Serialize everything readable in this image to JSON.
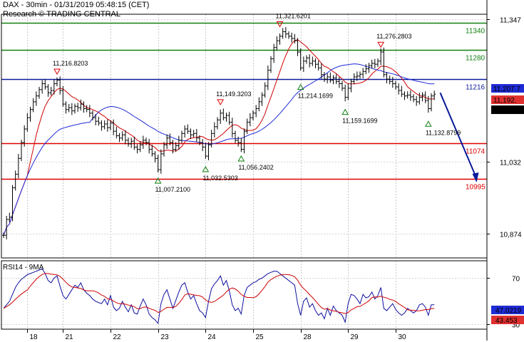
{
  "header": {
    "title": "DAX - 30min - 01/31/2019 05:48:15 (CET)",
    "source": "Research © TRADING CENTRAL"
  },
  "colors": {
    "price": "#000000",
    "ma_fast": "#d00000",
    "ma_slow": "#1f2bd6",
    "support": "#e00000",
    "resistance": "#108010",
    "pivot": "#0a1a9a",
    "arrow": "#0a1a9a",
    "rsi": "#1010a0",
    "rsi_ma": "#d00000",
    "badge_blue": "#1f2bd6",
    "badge_red": "#e03030",
    "badge_black": "#000000"
  },
  "chart_data": [
    {
      "type": "line",
      "title": "DAX - 30min - 01/31/2019 05:48:15 (CET)",
      "ylim": [
        10820,
        11390
      ],
      "x_labels": [
        "18",
        "21",
        "22",
        "23",
        "24",
        "25",
        "28",
        "29",
        "30"
      ],
      "y_ticks": [
        "11,347",
        "11,032",
        "10,874"
      ],
      "y_tick_values": [
        11347,
        11032,
        10874
      ],
      "levels": [
        {
          "value": 11340,
          "label": "11340",
          "role": "resistance"
        },
        {
          "value": 11280,
          "label": "11280",
          "role": "resistance"
        },
        {
          "value": 11216,
          "label": "11216",
          "role": "pivot"
        },
        {
          "value": 11074,
          "label": "11074",
          "role": "support"
        },
        {
          "value": 10995,
          "label": "10995",
          "role": "support"
        }
      ],
      "annotations": [
        {
          "label": "11,216.8203",
          "idx": 18,
          "value": 11216.8,
          "type": "high"
        },
        {
          "label": "11,007.2100",
          "idx": 52,
          "value": 11007.2,
          "type": "low"
        },
        {
          "label": "11,032.5303",
          "idx": 68,
          "value": 11032.5,
          "type": "low"
        },
        {
          "label": "11,149.3203",
          "idx": 73,
          "value": 11149.3,
          "type": "high"
        },
        {
          "label": "11,056.2402",
          "idx": 80,
          "value": 11056.2,
          "type": "low"
        },
        {
          "label": "11,321.6201",
          "idx": 93,
          "value": 11321.6,
          "type": "high"
        },
        {
          "label": "11,214.1699",
          "idx": 100,
          "value": 11214.2,
          "type": "low"
        },
        {
          "label": "11,159.1699",
          "idx": 115,
          "value": 11159.2,
          "type": "low"
        },
        {
          "label": "11,276.2803",
          "idx": 127,
          "value": 11276.3,
          "type": "high"
        },
        {
          "label": "11,132.8799",
          "idx": 143,
          "value": 11132.9,
          "type": "low"
        }
      ],
      "badges": [
        {
          "label": "11,207.7",
          "value": 11207.7,
          "color": "badge_blue"
        },
        {
          "label": "11,192.",
          "value": 11192,
          "color": "badge_red"
        },
        {
          "label": "11,181.7",
          "value": 11181.7,
          "color": "badge_black"
        }
      ],
      "forecast": {
        "from_value": 11185,
        "to_value": 10990
      },
      "close": [
        10870,
        10905,
        10910,
        10975,
        11005,
        11040,
        11075,
        11105,
        11130,
        11148,
        11165,
        11178,
        11192,
        11205,
        11198,
        11185,
        11190,
        11205,
        11213,
        11190,
        11160,
        11148,
        11152,
        11145,
        11155,
        11152,
        11160,
        11150,
        11148,
        11140,
        11130,
        11122,
        11118,
        11110,
        11116,
        11108,
        11118,
        11100,
        11090,
        11085,
        11092,
        11080,
        11072,
        11078,
        11065,
        11060,
        11070,
        11080,
        11075,
        11060,
        11050,
        11040,
        11015,
        11050,
        11070,
        11085,
        11075,
        11060,
        11068,
        11080,
        11095,
        11105,
        11100,
        11092,
        11095,
        11085,
        11075,
        11065,
        11045,
        11070,
        11095,
        11110,
        11125,
        11140,
        11130,
        11135,
        11120,
        11095,
        11080,
        11075,
        11060,
        11100,
        11120,
        11130,
        11140,
        11150,
        11165,
        11180,
        11200,
        11235,
        11260,
        11285,
        11300,
        11310,
        11320,
        11315,
        11310,
        11305,
        11300,
        11275,
        11240,
        11255,
        11262,
        11250,
        11255,
        11248,
        11240,
        11225,
        11215,
        11220,
        11213,
        11218,
        11210,
        11205,
        11195,
        11175,
        11195,
        11210,
        11220,
        11222,
        11226,
        11232,
        11238,
        11245,
        11250,
        11248,
        11255,
        11275,
        11225,
        11215,
        11210,
        11205,
        11198,
        11190,
        11182,
        11178,
        11180,
        11176,
        11170,
        11165,
        11175,
        11180,
        11168,
        11150,
        11178,
        11181.7
      ],
      "series": [
        {
          "key": "ma_fast",
          "color": "ma_fast",
          "period": 9
        },
        {
          "key": "ma_slow",
          "color": "ma_slow",
          "period": 30
        }
      ]
    },
    {
      "type": "line",
      "title": "RSI14 - 9MA",
      "ylim": [
        26,
        85
      ],
      "y_ticks": [
        "70",
        "30"
      ],
      "y_tick_values": [
        70,
        30
      ],
      "values": [
        44,
        47,
        50,
        56,
        62,
        66,
        69,
        71,
        73,
        74,
        75,
        76,
        77,
        78,
        74,
        68,
        66,
        70,
        72,
        63,
        55,
        52,
        56,
        60,
        64,
        62,
        66,
        60,
        57,
        55,
        52,
        50,
        49,
        48,
        52,
        47,
        55,
        45,
        42,
        44,
        50,
        45,
        41,
        47,
        40,
        39,
        46,
        52,
        47,
        39,
        36,
        34,
        31,
        48,
        56,
        60,
        52,
        44,
        51,
        58,
        64,
        66,
        58,
        52,
        55,
        48,
        42,
        40,
        36,
        50,
        61,
        65,
        68,
        72,
        64,
        68,
        59,
        47,
        42,
        44,
        39,
        55,
        62,
        64,
        66,
        67,
        69,
        70,
        72,
        74,
        75,
        76,
        76,
        74,
        72,
        70,
        68,
        66,
        64,
        48,
        38,
        50,
        53,
        45,
        48,
        42,
        38,
        40,
        35,
        44,
        38,
        46,
        42,
        40,
        38,
        32,
        48,
        56,
        55,
        52,
        48,
        56,
        53,
        54,
        58,
        52,
        55,
        62,
        44,
        42,
        45,
        48,
        43,
        40,
        38,
        40,
        44,
        42,
        40,
        42,
        47,
        48,
        45,
        38,
        47,
        47
      ],
      "rsi_ma_period": 9,
      "badges": [
        {
          "label": "47.0219",
          "value": 47.0219,
          "color": "badge_blue"
        },
        {
          "label": "43.453",
          "value": 43.453,
          "color": "badge_red"
        }
      ]
    }
  ]
}
